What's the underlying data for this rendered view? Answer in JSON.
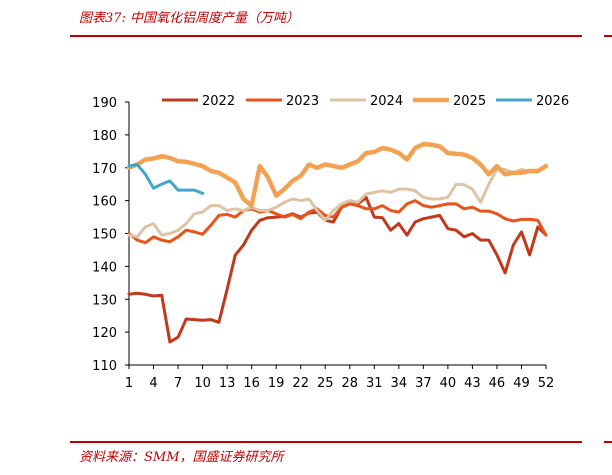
{
  "figure": {
    "title": "图表37:  中国氧化铝周度产量（万吨）",
    "source": "资料来源：SMM，国盛证券研究所"
  },
  "chart_data": {
    "type": "line",
    "title": "",
    "xlabel": "",
    "ylabel": "",
    "ylim": [
      110,
      190
    ],
    "yticks": [
      110,
      120,
      130,
      140,
      150,
      160,
      170,
      180,
      190
    ],
    "xlim": [
      1,
      52
    ],
    "xticks": [
      1,
      4,
      7,
      10,
      13,
      16,
      19,
      22,
      25,
      28,
      31,
      34,
      37,
      40,
      43,
      46,
      49,
      52
    ],
    "grid": false,
    "legend_position": "top",
    "series": [
      {
        "name": "2022",
        "color": "#c0391b",
        "x": [
          1,
          2,
          3,
          4,
          5,
          6,
          7,
          8,
          9,
          10,
          11,
          12,
          13,
          14,
          15,
          16,
          17,
          18,
          19,
          20,
          21,
          22,
          23,
          24,
          25,
          26,
          27,
          28,
          29,
          30,
          31,
          32,
          33,
          34,
          35,
          36,
          37,
          38,
          39,
          40,
          41,
          42,
          43,
          44,
          45,
          46,
          47,
          48,
          49,
          50,
          51,
          52
        ],
        "values": [
          131.5,
          131.8,
          131.5,
          131.0,
          131.2,
          117.0,
          118.5,
          124.0,
          123.8,
          123.6,
          123.8,
          123.0,
          133.0,
          143.5,
          146.5,
          151.0,
          154.0,
          154.8,
          155.0,
          155.2,
          156.0,
          155.0,
          156.2,
          156.5,
          154.0,
          153.5,
          158.0,
          159.0,
          159.0,
          161.0,
          155.0,
          154.8,
          151.0,
          153.0,
          149.5,
          153.5,
          154.5,
          155.0,
          155.5,
          151.5,
          151.0,
          149.0,
          150.0,
          148.0,
          148.0,
          143.5,
          138.0,
          146.5,
          150.5,
          143.5,
          152.0,
          149.5
        ]
      },
      {
        "name": "2023",
        "color": "#e8541c",
        "x": [
          1,
          2,
          3,
          4,
          5,
          6,
          7,
          8,
          9,
          10,
          11,
          12,
          13,
          14,
          15,
          16,
          17,
          18,
          19,
          20,
          21,
          22,
          23,
          24,
          25,
          26,
          27,
          28,
          29,
          30,
          31,
          32,
          33,
          34,
          35,
          36,
          37,
          38,
          39,
          40,
          41,
          42,
          43,
          44,
          45,
          46,
          47,
          48,
          49,
          50,
          51,
          52
        ],
        "values": [
          150.0,
          148.0,
          147.2,
          149.0,
          148.0,
          147.5,
          149.0,
          151.0,
          150.5,
          149.8,
          152.5,
          155.5,
          155.8,
          155.0,
          157.0,
          157.5,
          156.5,
          157.0,
          156.0,
          155.0,
          155.8,
          154.5,
          156.5,
          157.5,
          155.5,
          155.0,
          158.0,
          159.0,
          158.5,
          157.5,
          157.5,
          158.5,
          157.0,
          156.5,
          159.0,
          160.0,
          158.5,
          158.0,
          158.5,
          159.0,
          159.0,
          157.5,
          158.0,
          156.8,
          156.8,
          156.0,
          154.5,
          153.8,
          154.3,
          154.3,
          154.0,
          149.5
        ]
      },
      {
        "name": "2024",
        "color": "#dcc4a4",
        "x": [
          1,
          2,
          3,
          4,
          5,
          6,
          7,
          8,
          9,
          10,
          11,
          12,
          13,
          14,
          15,
          16,
          17,
          18,
          19,
          20,
          21,
          22,
          23,
          24,
          25,
          26,
          27,
          28,
          29,
          30,
          31,
          32,
          33,
          34,
          35,
          36,
          37,
          38,
          39,
          40,
          41,
          42,
          43,
          44,
          45,
          46,
          47,
          48,
          49,
          50,
          51,
          52
        ],
        "values": [
          149.5,
          149.0,
          152.0,
          153.0,
          149.5,
          150.0,
          151.0,
          153.0,
          156.0,
          156.5,
          158.5,
          158.5,
          157.0,
          157.5,
          157.0,
          158.0,
          157.0,
          157.0,
          158.0,
          159.5,
          160.5,
          160.0,
          160.5,
          157.0,
          154.0,
          157.0,
          159.0,
          160.0,
          159.5,
          162.0,
          162.5,
          163.0,
          162.5,
          163.5,
          163.5,
          163.0,
          161.0,
          160.5,
          160.5,
          161.0,
          165.0,
          164.8,
          163.5,
          159.5,
          165.0,
          169.5,
          169.5,
          168.5,
          169.5,
          168.8,
          168.8,
          170.5
        ]
      },
      {
        "name": "2025",
        "color": "#f3a254",
        "x": [
          1,
          2,
          3,
          4,
          5,
          6,
          7,
          8,
          9,
          10,
          11,
          12,
          13,
          14,
          15,
          16,
          17,
          18,
          19,
          20,
          21,
          22,
          23,
          24,
          25,
          26,
          27,
          28,
          29,
          30,
          31,
          32,
          33,
          34,
          35,
          36,
          37,
          38,
          39,
          40,
          41,
          42,
          43,
          44,
          45,
          46,
          47,
          48,
          49,
          50,
          51,
          52
        ],
        "values": [
          170.0,
          171.0,
          172.5,
          172.8,
          173.5,
          173.0,
          172.0,
          171.8,
          171.2,
          170.5,
          169.0,
          168.5,
          167.0,
          165.5,
          160.5,
          158.5,
          170.5,
          167.0,
          161.5,
          163.5,
          166.0,
          167.5,
          171.0,
          170.0,
          171.0,
          170.5,
          170.0,
          171.0,
          172.0,
          174.5,
          174.8,
          176.0,
          175.5,
          174.5,
          172.5,
          176.0,
          177.2,
          177.0,
          176.5,
          174.5,
          174.2,
          174.0,
          173.0,
          171.0,
          168.0,
          170.5,
          168.0,
          168.5,
          168.5,
          169.0,
          169.0,
          170.5
        ]
      },
      {
        "name": "2026",
        "color": "#41a6c9",
        "x": [
          1,
          2,
          3,
          4,
          5,
          6,
          7,
          8,
          9,
          10
        ],
        "values": [
          170.5,
          171.0,
          168.0,
          163.8,
          165.0,
          166.0,
          163.2,
          163.2,
          163.2,
          162.2
        ]
      }
    ]
  }
}
